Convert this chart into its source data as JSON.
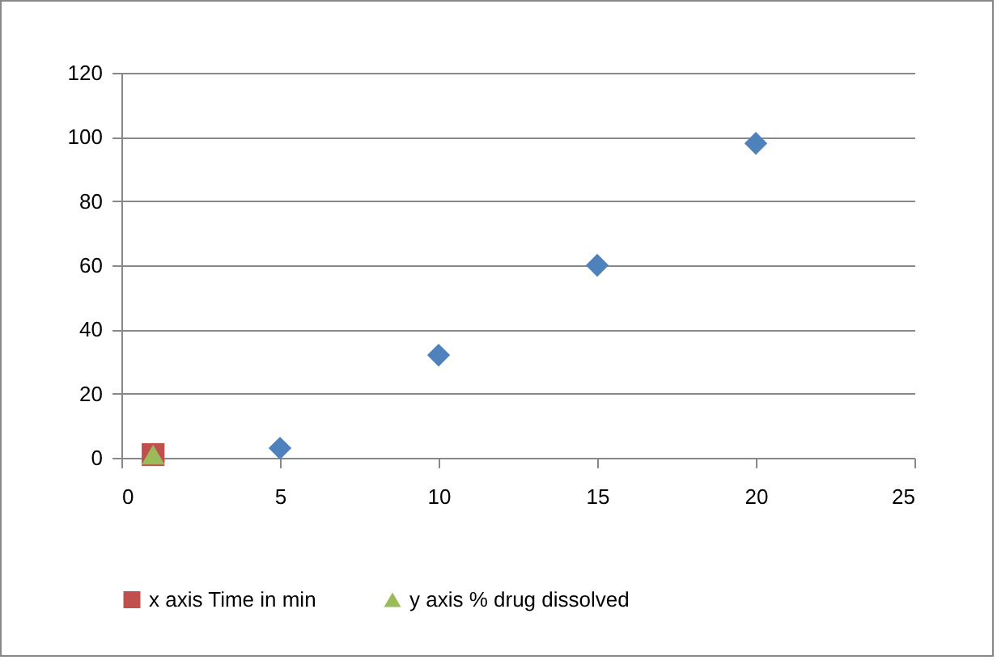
{
  "chart_data": {
    "type": "scatter",
    "series": [
      {
        "color": "#4f81bd",
        "marker": "diamond",
        "x": [
          5,
          10,
          15,
          20
        ],
        "values": [
          3,
          32,
          60,
          98
        ]
      },
      {
        "name": "x axis Time in min",
        "color": "#c0504d",
        "marker": "square",
        "x": [
          1
        ],
        "values": [
          1
        ]
      },
      {
        "name": "y axis % drug dissolved",
        "color": "#9bbb59",
        "marker": "triangle",
        "x": [
          1
        ],
        "values": [
          1
        ]
      }
    ],
    "xlim": [
      0,
      25
    ],
    "xticks": [
      0,
      5,
      10,
      15,
      20,
      25
    ],
    "ylim": [
      0,
      120
    ],
    "yticks": [
      0,
      20,
      40,
      60,
      80,
      100,
      120
    ],
    "grid": "y",
    "legend": "bottom"
  }
}
